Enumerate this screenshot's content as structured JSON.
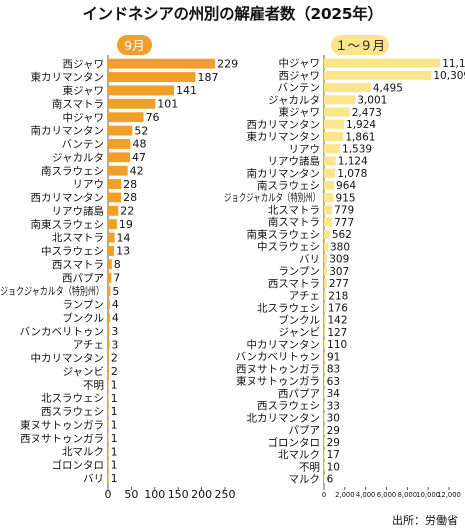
{
  "title": "インドネシアの州別の解雇者数（2025年）",
  "source": "出所：労働省",
  "colors": {
    "left_bar": "#f0a02a",
    "left_pill": "#f0a02a",
    "left_pill_text": "#ffffff",
    "right_bar": "#fbe58c",
    "right_pill": "#fbe58c",
    "right_pill_text": "#222222"
  },
  "chart_data": [
    {
      "type": "bar",
      "orientation": "horizontal",
      "panel_label": "9月",
      "categories": [
        "西ジャワ",
        "東カリマンタン",
        "東ジャワ",
        "南スマトラ",
        "中ジャワ",
        "南カリマンタン",
        "バンテン",
        "ジャカルタ",
        "南スラウェシ",
        "リアウ",
        "西カリマンタン",
        "リアウ諸島",
        "南東スラウェシ",
        "北スマトラ",
        "中スラウェシ",
        "西スマトラ",
        "西パプア",
        "ジョクジャカルタ（特別州）",
        "ランプン",
        "ブンクル",
        "バンカベリトゥン",
        "アチェ",
        "中カリマンタン",
        "ジャンビ",
        "不明",
        "北スラウェシ",
        "西スラウェシ",
        "東ヌサトゥンガラ",
        "西ヌサトゥンガラ",
        "北マルク",
        "ゴロンタロ",
        "バリ"
      ],
      "values": [
        229,
        187,
        141,
        101,
        76,
        52,
        48,
        47,
        42,
        28,
        28,
        22,
        19,
        14,
        13,
        8,
        7,
        5,
        4,
        4,
        3,
        3,
        2,
        2,
        1,
        1,
        1,
        1,
        1,
        1,
        1,
        1
      ],
      "xlim": [
        0,
        250
      ],
      "xticks": [
        "0",
        "50",
        "100",
        "150",
        "200",
        "250"
      ]
    },
    {
      "type": "bar",
      "orientation": "horizontal",
      "panel_label": "１～９月",
      "categories": [
        "中ジャワ",
        "西ジャワ",
        "バンテン",
        "ジャカルタ",
        "東ジャワ",
        "西カリマンタン",
        "東カリマンタン",
        "リアウ",
        "リアウ諸島",
        "南カリマンタン",
        "南スラウェシ",
        "ジョクジャカルタ（特別州）",
        "北スマトラ",
        "南スマトラ",
        "南東スラウェシ",
        "中スラウェシ",
        "バリ",
        "ランプン",
        "西スマトラ",
        "アチェ",
        "北スラウェシ",
        "ブンクル",
        "ジャンビ",
        "中カリマンタン",
        "バンカベリトゥン",
        "西ヌサトゥンガラ",
        "東ヌサトゥンガラ",
        "西パプア",
        "西スラウェシ",
        "北カリマンタン",
        "パプア",
        "ゴロンタロ",
        "北マルク",
        "不明",
        "マルク"
      ],
      "values": [
        11154,
        10309,
        4495,
        3001,
        2473,
        1924,
        1861,
        1539,
        1124,
        1078,
        964,
        915,
        779,
        777,
        562,
        380,
        309,
        307,
        277,
        218,
        176,
        142,
        127,
        110,
        91,
        83,
        63,
        34,
        33,
        30,
        29,
        29,
        17,
        10,
        6
      ],
      "value_labels": [
        "11,154",
        "10,309",
        "4,495",
        "3,001",
        "2,473",
        "1,924",
        "1,861",
        "1,539",
        "1,124",
        "1,078",
        "964",
        "915",
        "779",
        "777",
        "562",
        "380",
        "309",
        "307",
        "277",
        "218",
        "176",
        "142",
        "127",
        "110",
        "91",
        "83",
        "63",
        "34",
        "33",
        "30",
        "29",
        "29",
        "17",
        "10",
        "6"
      ],
      "xlim": [
        0,
        12000
      ],
      "xticks": [
        "0",
        "2,000",
        "4,000",
        "6,000",
        "8,000",
        "10,000",
        "12,000"
      ]
    }
  ]
}
